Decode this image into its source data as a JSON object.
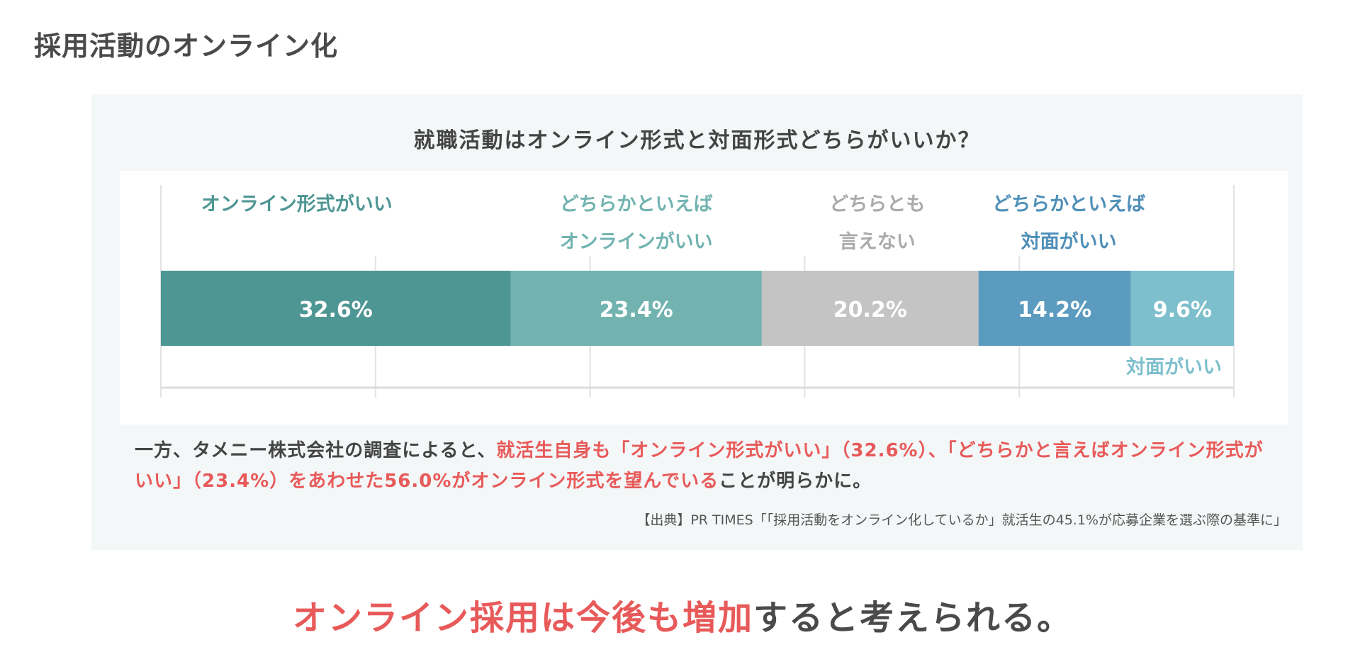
{
  "slide_title": "採用活動のオンライン化",
  "colors": {
    "accent_red": "#e85a5a",
    "text": "#444444"
  },
  "chart_data": {
    "type": "bar",
    "orientation": "horizontal-stacked-100",
    "title": "就職活動はオンライン形式と対面形式どちらがいいか？",
    "categories": [
      "オンライン形式がいい",
      "どちらかといえば\nオンラインがいい",
      "どちらとも\n言えない",
      "どちらかといえば\n対面がいい",
      "対面がいい"
    ],
    "values": [
      32.6,
      23.4,
      20.2,
      14.2,
      9.6
    ],
    "value_labels": [
      "32.6%",
      "23.4%",
      "20.2%",
      "14.2%",
      "9.6%"
    ],
    "colors": [
      "#4e9693",
      "#72b3b0",
      "#c4c4c4",
      "#5b9bbf",
      "#7dbfcc"
    ],
    "label_colors": [
      "#4e9693",
      "#72b3b0",
      "#aaaaaa",
      "#4f8fb8",
      "#7dbfcc"
    ],
    "xlim": [
      0,
      100
    ],
    "grid": true
  },
  "paragraph": {
    "p1": "一方、タメニー株式会社の調査によると、",
    "p2": "就活生自身も「オンライン形式がいい」（32.6%）、「どちらかと言えばオンライン形式がいい」（23.4%）をあわせた56.0%がオンライン形式を望んでいる",
    "p3": "ことが明らかに。"
  },
  "source": "【出典】PR TIMES「「採用活動をオンライン化しているか」就活生の45.1%が応募企業を選ぶ際の基準に」",
  "headline": {
    "red": "オンライン採用は今後も増加",
    "rest": "すると考えられる。"
  }
}
